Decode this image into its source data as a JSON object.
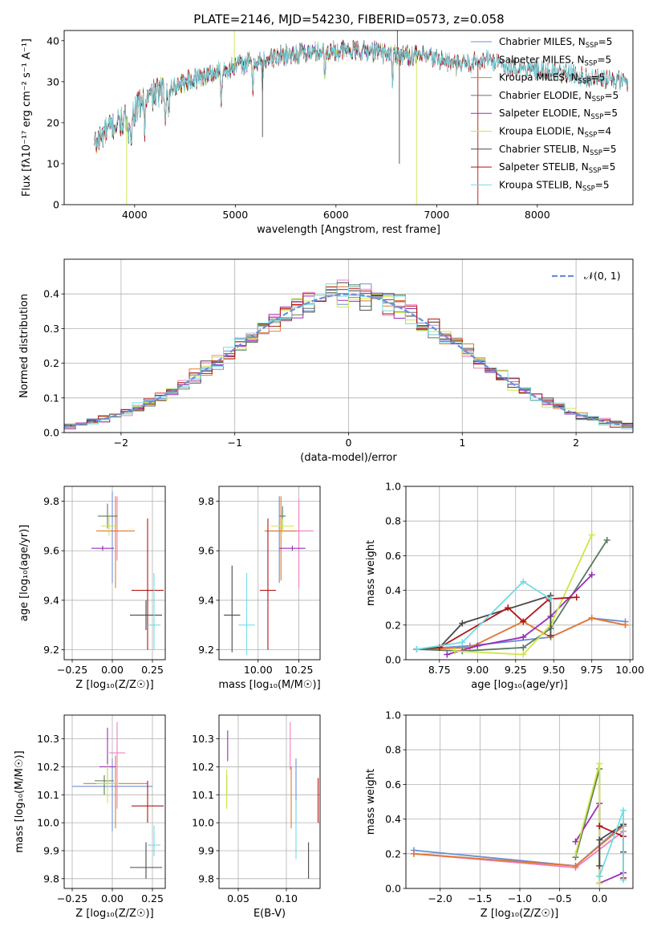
{
  "figure_title": "PLATE=2146, MJD=54230, FIBERID=0573, z=0.058",
  "colors": {
    "Chabrier MILES": "#6b8fd6",
    "Salpeter MILES": "#f07fc0",
    "Kroupa MILES": "#e07a30",
    "Chabrier ELODIE": "#5a7a5e",
    "Salpeter ELODIE": "#9a2db8",
    "Kroupa ELODIE": "#cfe646",
    "Chabrier STELIB": "#4a4a4a",
    "Salpeter STELIB": "#b01515",
    "Kroupa STELIB": "#72dce6"
  },
  "chart_data": [
    {
      "id": "spectrum",
      "type": "line",
      "title": "PLATE=2146, MJD=54230, FIBERID=0573, z=0.058",
      "xlabel": "wavelength [Angstrom, rest frame]",
      "ylabel": "Flux [fλ10⁻¹⁷ erg cm⁻² s⁻¹ A⁻¹]",
      "xlim": [
        3300,
        8950
      ],
      "ylim": [
        0,
        42.5
      ],
      "xticks": [
        4000,
        5000,
        6000,
        7000,
        8000
      ],
      "yticks": [
        0,
        10,
        20,
        30,
        40
      ],
      "grid": false,
      "legend_position": "right",
      "continuum": {
        "x": [
          3600,
          3700,
          3800,
          3900,
          4000,
          4100,
          4200,
          4300,
          4500,
          4700,
          4900,
          5100,
          5300,
          5500,
          5700,
          5900,
          6100,
          6300,
          6500,
          6700,
          6900,
          7100,
          7200,
          7300,
          7400,
          7500,
          7700,
          7900,
          8100,
          8300,
          8500,
          8700,
          8900
        ],
        "y": [
          14.5,
          17.5,
          19.5,
          20.5,
          23,
          25.5,
          27,
          28,
          30,
          31.5,
          33,
          34.5,
          35.5,
          36.5,
          37,
          37.5,
          37.5,
          37.5,
          37,
          36.5,
          36,
          35,
          34,
          34.5,
          35,
          35.5,
          34,
          33,
          32.5,
          32,
          31,
          30.5,
          30
        ]
      },
      "absorption_lines": [
        3934,
        3969,
        4101,
        4304,
        4340,
        4861,
        5175,
        5270,
        5890,
        6563
      ],
      "spikes": [
        {
          "x": 3920,
          "bottom": 0,
          "series": "Kroupa ELODIE"
        },
        {
          "x": 6800,
          "bottom": 0,
          "series": "Kroupa ELODIE"
        },
        {
          "x": 7410,
          "bottom": 0,
          "series": "Salpeter STELIB"
        },
        {
          "x": 6610,
          "top": 42.5,
          "series": "Chabrier STELIB"
        },
        {
          "x": 4990,
          "top": 42.5,
          "series": "Kroupa ELODIE"
        },
        {
          "x": 6630,
          "bottom": 10,
          "series": "Chabrier STELIB"
        },
        {
          "x": 5270,
          "bottom": 16.5,
          "series": "Chabrier STELIB"
        }
      ],
      "series": [
        {
          "name": "Chabrier MILES",
          "nssp": "5",
          "xmax": 7300
        },
        {
          "name": "Salpeter MILES",
          "nssp": "5",
          "xmax": 7300
        },
        {
          "name": "Kroupa MILES",
          "nssp": "5",
          "xmax": 7300
        },
        {
          "name": "Chabrier ELODIE",
          "nssp": "5",
          "xmax": 6800
        },
        {
          "name": "Salpeter ELODIE",
          "nssp": "5",
          "xmax": 6800
        },
        {
          "name": "Kroupa ELODIE",
          "nssp": "4",
          "xmax": 6800
        },
        {
          "name": "Chabrier STELIB",
          "nssp": "5",
          "xmax": 8900
        },
        {
          "name": "Salpeter STELIB",
          "nssp": "5",
          "xmax": 8900
        },
        {
          "name": "Kroupa STELIB",
          "nssp": "5",
          "xmax": 8900
        }
      ]
    },
    {
      "id": "residuals",
      "type": "line",
      "xlabel": "(data-model)/error",
      "ylabel": "Normed distribution",
      "xlim": [
        -2.5,
        2.5
      ],
      "ylim": [
        0,
        0.5
      ],
      "xticks": [
        -2,
        -1,
        0,
        1,
        2
      ],
      "yticks": [
        0.0,
        0.1,
        0.2,
        0.3,
        0.4
      ],
      "grid": true,
      "legend_position": "top-right",
      "legend_label": "𝒩(0, 1)",
      "reference_curve": {
        "mean": 0,
        "sigma": 1,
        "color": "#6b8fd6"
      },
      "histogram_bins": {
        "start": -2.5,
        "width": 0.1
      }
    },
    {
      "id": "age-vs-Z",
      "type": "scatter",
      "xlabel": "Z [log₁₀(Z/Z☉)]",
      "ylabel": "age  [log₁₀(age/yr)]",
      "xlim": [
        -0.3,
        0.33
      ],
      "ylim": [
        9.16,
        9.86
      ],
      "xticks": [
        -0.25,
        0.0,
        0.25
      ],
      "yticks": [
        9.2,
        9.4,
        9.6,
        9.8
      ],
      "grid": true,
      "points": [
        {
          "series": "Chabrier MILES",
          "x": 0.0,
          "y": 9.68,
          "x_err": 0.04,
          "y_err_low": 0.21,
          "y_err_high": 0.16
        },
        {
          "series": "Salpeter MILES",
          "x": 0.03,
          "y": 9.68,
          "x_err": 0.06,
          "y_err_low": 0.12,
          "y_err_high": 0.14
        },
        {
          "series": "Kroupa MILES",
          "x": 0.02,
          "y": 9.68,
          "x_err": 0.12,
          "y_err_low": 0.23,
          "y_err_high": 0.14
        },
        {
          "series": "Chabrier ELODIE",
          "x": -0.03,
          "y": 9.74,
          "x_err": 0.06,
          "y_err_low": 0.05,
          "y_err_high": 0.05
        },
        {
          "series": "Salpeter ELODIE",
          "x": -0.06,
          "y": 9.61,
          "x_err": 0.07,
          "y_err_low": 0.01,
          "y_err_high": 0.01
        },
        {
          "series": "Kroupa ELODIE",
          "x": -0.02,
          "y": 9.7,
          "x_err": 0.05,
          "y_err_low": 0.04,
          "y_err_high": 0.04
        },
        {
          "series": "Chabrier STELIB",
          "x": 0.21,
          "y": 9.34,
          "x_err": 0.1,
          "y_err_low": 0.06,
          "y_err_high": 0.06
        },
        {
          "series": "Salpeter STELIB",
          "x": 0.22,
          "y": 9.44,
          "x_err": 0.1,
          "y_err_low": 0.24,
          "y_err_high": 0.29
        },
        {
          "series": "Kroupa STELIB",
          "x": 0.26,
          "y": 9.3,
          "x_err": 0.04,
          "y_err_low": 0.1,
          "y_err_high": 0.21
        }
      ]
    },
    {
      "id": "age-vs-mass",
      "type": "scatter",
      "xlabel": "mass [log₁₀(M/M☉)]",
      "ylabel": "",
      "xlim": [
        9.76,
        10.38
      ],
      "ylim": [
        9.16,
        9.86
      ],
      "xticks": [
        10.0,
        10.25
      ],
      "yticks": [
        9.2,
        9.4,
        9.6,
        9.8
      ],
      "grid": true,
      "points": [
        {
          "series": "Chabrier MILES",
          "x": 10.13,
          "y": 9.68,
          "x_err": 0.09,
          "y_err_low": 0.21,
          "y_err_high": 0.14
        },
        {
          "series": "Salpeter MILES",
          "x": 10.25,
          "y": 9.68,
          "x_err": 0.09,
          "y_err_low": 0.23,
          "y_err_high": 0.13
        },
        {
          "series": "Kroupa MILES",
          "x": 10.14,
          "y": 9.68,
          "x_err": 0.1,
          "y_err_low": 0.2,
          "y_err_high": 0.14
        },
        {
          "series": "Chabrier ELODIE",
          "x": 10.15,
          "y": 9.74,
          "x_err": 0.02,
          "y_err_low": 0.06,
          "y_err_high": 0.04
        },
        {
          "series": "Salpeter ELODIE",
          "x": 10.21,
          "y": 9.61,
          "x_err": 0.08,
          "y_err_low": 0.01,
          "y_err_high": 0.01
        },
        {
          "series": "Kroupa ELODIE",
          "x": 10.15,
          "y": 9.7,
          "x_err": 0.07,
          "y_err_low": 0.03,
          "y_err_high": 0.03
        },
        {
          "series": "Chabrier STELIB",
          "x": 9.84,
          "y": 9.34,
          "x_err": 0.05,
          "y_err_low": 0.15,
          "y_err_high": 0.2
        },
        {
          "series": "Salpeter STELIB",
          "x": 10.06,
          "y": 9.44,
          "x_err": 0.05,
          "y_err_low": 0.24,
          "y_err_high": 0.29
        },
        {
          "series": "Kroupa STELIB",
          "x": 9.93,
          "y": 9.3,
          "x_err": 0.05,
          "y_err_low": 0.12,
          "y_err_high": 0.21
        }
      ]
    },
    {
      "id": "mass-weight-vs-age",
      "type": "line",
      "xlabel": "age  [log₁₀(age/yr)]",
      "ylabel": "mass weight",
      "xlim": [
        8.53,
        10.02
      ],
      "ylim": [
        0,
        1.0
      ],
      "xticks": [
        8.75,
        9.0,
        9.25,
        9.5,
        9.75,
        10.0
      ],
      "yticks": [
        0.0,
        0.2,
        0.4,
        0.6,
        0.8,
        1.0
      ],
      "grid": true,
      "series": [
        {
          "name": "Chabrier MILES",
          "x": [
            8.6,
            8.95,
            9.48,
            9.75,
            9.97
          ],
          "y": [
            0.06,
            0.08,
            0.13,
            0.24,
            0.22
          ]
        },
        {
          "name": "Salpeter MILES",
          "x": [
            8.6,
            8.95,
            9.3,
            9.48,
            9.75,
            9.97
          ],
          "y": [
            0.06,
            0.07,
            0.22,
            0.13,
            0.24,
            0.2
          ]
        },
        {
          "name": "Kroupa MILES",
          "x": [
            8.6,
            8.95,
            9.3,
            9.48,
            9.75,
            9.97
          ],
          "y": [
            0.06,
            0.07,
            0.22,
            0.13,
            0.24,
            0.2
          ]
        },
        {
          "name": "Chabrier ELODIE",
          "x": [
            8.6,
            8.9,
            9.3,
            9.48,
            9.85
          ],
          "y": [
            0.06,
            0.05,
            0.07,
            0.18,
            0.69
          ]
        },
        {
          "name": "Salpeter ELODIE",
          "x": [
            8.8,
            9.0,
            9.3,
            9.48,
            9.75
          ],
          "y": [
            0.03,
            0.08,
            0.13,
            0.25,
            0.49
          ]
        },
        {
          "name": "Kroupa ELODIE",
          "x": [
            8.85,
            9.3,
            9.48,
            9.75
          ],
          "y": [
            0.05,
            0.03,
            0.2,
            0.72
          ]
        },
        {
          "name": "Chabrier STELIB",
          "x": [
            8.6,
            8.75,
            8.9,
            9.48,
            9.48
          ],
          "y": [
            0.06,
            0.07,
            0.21,
            0.37,
            0.14
          ]
        },
        {
          "name": "Salpeter STELIB",
          "x": [
            8.75,
            9.2,
            9.3,
            9.47,
            9.65
          ],
          "y": [
            0.07,
            0.3,
            0.22,
            0.35,
            0.36
          ]
        },
        {
          "name": "Kroupa STELIB",
          "x": [
            8.6,
            8.9,
            9.3,
            9.48
          ],
          "y": [
            0.06,
            0.1,
            0.45,
            0.35
          ]
        }
      ]
    },
    {
      "id": "mass-vs-Z",
      "type": "scatter",
      "xlabel": "Z [log₁₀(Z/Z☉)]",
      "ylabel": "mass [log₁₀(M/M☉)]",
      "xlim": [
        -0.3,
        0.33
      ],
      "ylim": [
        9.765,
        10.385
      ],
      "xticks": [
        -0.25,
        0.0,
        0.25
      ],
      "yticks": [
        9.8,
        9.9,
        10.0,
        10.1,
        10.2,
        10.3
      ],
      "grid": true,
      "points": [
        {
          "series": "Chabrier MILES",
          "x": 0.0,
          "y": 10.13,
          "x_err": 0.25,
          "y_err_low": 0.16,
          "y_err_high": 0.1
        },
        {
          "series": "Salpeter MILES",
          "x": 0.03,
          "y": 10.25,
          "x_err": 0.05,
          "y_err_low": 0.2,
          "y_err_high": 0.11
        },
        {
          "series": "Kroupa MILES",
          "x": 0.02,
          "y": 10.14,
          "x_err": 0.2,
          "y_err_low": 0.16,
          "y_err_high": 0.1
        },
        {
          "series": "Chabrier ELODIE",
          "x": -0.05,
          "y": 10.15,
          "x_err": 0.06,
          "y_err_low": 0.05,
          "y_err_high": 0.02
        },
        {
          "series": "Salpeter ELODIE",
          "x": -0.03,
          "y": 10.2,
          "x_err": 0.05,
          "y_err_low": 0.06,
          "y_err_high": 0.14
        },
        {
          "series": "Kroupa ELODIE",
          "x": -0.03,
          "y": 10.14,
          "x_err": 0.07,
          "y_err_low": 0.07,
          "y_err_high": 0.07
        },
        {
          "series": "Chabrier STELIB",
          "x": 0.21,
          "y": 9.84,
          "x_err": 0.1,
          "y_err_low": 0.04,
          "y_err_high": 0.09
        },
        {
          "series": "Salpeter STELIB",
          "x": 0.22,
          "y": 10.06,
          "x_err": 0.1,
          "y_err_low": 0.06,
          "y_err_high": 0.09
        },
        {
          "series": "Kroupa STELIB",
          "x": 0.26,
          "y": 9.92,
          "x_err": 0.04,
          "y_err_low": 0.04,
          "y_err_high": 0.07
        }
      ]
    },
    {
      "id": "mass-vs-ebv",
      "type": "scatter",
      "xlabel": "E(B-V)",
      "ylabel": "",
      "xlim": [
        0.03,
        0.135
      ],
      "ylim": [
        9.765,
        10.385
      ],
      "xticks": [
        0.05,
        0.1
      ],
      "yticks": [
        9.8,
        9.9,
        10.0,
        10.1,
        10.2,
        10.3
      ],
      "grid": true,
      "points": [
        {
          "series": "Chabrier MILES",
          "x": 0.11,
          "y": 10.13,
          "y_err_low": 0.13,
          "y_err_high": 0.1
        },
        {
          "series": "Salpeter MILES",
          "x": 0.104,
          "y": 10.25,
          "y_err_low": 0.06,
          "y_err_high": 0.11
        },
        {
          "series": "Kroupa MILES",
          "x": 0.105,
          "y": 10.1,
          "y_err_low": 0.12,
          "y_err_high": 0.1
        },
        {
          "series": "Chabrier ELODIE",
          "x": 0.038,
          "y": 10.15,
          "y_err_low": 0.05,
          "y_err_high": 0.02
        },
        {
          "series": "Salpeter ELODIE",
          "x": 0.039,
          "y": 10.27,
          "y_err_low": 0.05,
          "y_err_high": 0.06
        },
        {
          "series": "Kroupa ELODIE",
          "x": 0.038,
          "y": 10.12,
          "y_err_low": 0.07,
          "y_err_high": 0.07
        },
        {
          "series": "Chabrier STELIB",
          "x": 0.123,
          "y": 9.85,
          "y_err_low": 0.05,
          "y_err_high": 0.08
        },
        {
          "series": "Salpeter STELIB",
          "x": 0.133,
          "y": 10.08,
          "y_err_low": 0.08,
          "y_err_high": 0.08
        },
        {
          "series": "Kroupa STELIB",
          "x": 0.11,
          "y": 9.98,
          "y_err_low": 0.11,
          "y_err_high": 0.1
        }
      ]
    },
    {
      "id": "mass-weight-vs-Z",
      "type": "line",
      "xlabel": "Z [log₁₀(Z/Z☉)]",
      "ylabel": "mass weight",
      "xlim": [
        -2.43,
        0.42
      ],
      "ylim": [
        0,
        1.0
      ],
      "xticks": [
        -2.0,
        -1.5,
        -1.0,
        -0.5,
        0.0
      ],
      "yticks": [
        0.0,
        0.2,
        0.4,
        0.6,
        0.8,
        1.0
      ],
      "grid": true,
      "series": [
        {
          "name": "Chabrier MILES",
          "x": [
            -2.33,
            -0.3,
            0.3
          ],
          "y": [
            0.22,
            0.13,
            0.37
          ]
        },
        {
          "name": "Salpeter MILES",
          "x": [
            -2.33,
            -0.3,
            0.3
          ],
          "y": [
            0.2,
            0.12,
            0.33
          ]
        },
        {
          "name": "Kroupa MILES",
          "x": [
            -2.33,
            -0.3,
            0.3
          ],
          "y": [
            0.2,
            0.13,
            0.36
          ]
        },
        {
          "name": "Chabrier ELODIE",
          "x": [
            -0.3,
            0.0,
            0.0
          ],
          "y": [
            0.18,
            0.69,
            0.07
          ]
        },
        {
          "name": "Salpeter ELODIE",
          "x": [
            -0.3,
            0.0,
            0.0,
            0.3
          ],
          "y": [
            0.27,
            0.49,
            0.03,
            0.09
          ]
        },
        {
          "name": "Kroupa ELODIE",
          "x": [
            -0.3,
            0.0,
            0.0
          ],
          "y": [
            0.2,
            0.72,
            0.03
          ]
        },
        {
          "name": "Chabrier STELIB",
          "x": [
            0.0,
            0.0,
            0.3,
            0.3
          ],
          "y": [
            0.13,
            0.28,
            0.37,
            0.21
          ]
        },
        {
          "name": "Salpeter STELIB",
          "x": [
            0.0,
            0.3,
            0.3
          ],
          "y": [
            0.36,
            0.3,
            0.06
          ]
        },
        {
          "name": "Kroupa STELIB",
          "x": [
            0.0,
            0.3,
            0.3
          ],
          "y": [
            0.07,
            0.45,
            0.05
          ]
        }
      ]
    }
  ]
}
